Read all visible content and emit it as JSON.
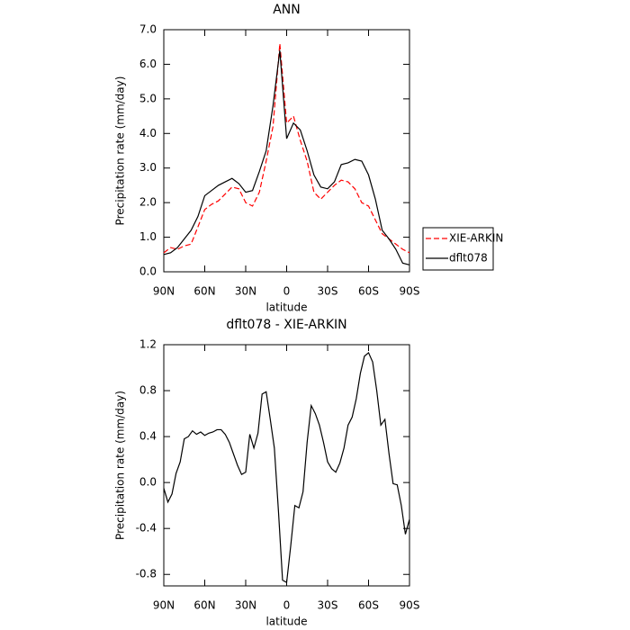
{
  "chart_data": [
    {
      "type": "line",
      "title": "ANN",
      "xlabel": "latitude",
      "ylabel": "Precipitation rate (mm/day)",
      "x": [
        90,
        85,
        80,
        75,
        70,
        65,
        60,
        55,
        50,
        45,
        40,
        35,
        30,
        25,
        20,
        15,
        10,
        5,
        0,
        -5,
        -10,
        -15,
        -20,
        -25,
        -30,
        -35,
        -40,
        -45,
        -50,
        -55,
        -60,
        -65,
        -70,
        -75,
        -80,
        -85,
        -90
      ],
      "series": [
        {
          "name": "XIE-ARKIN",
          "color": "#ff0000",
          "line_style": "dashed",
          "values": [
            0.55,
            0.7,
            0.65,
            0.75,
            0.8,
            1.3,
            1.8,
            1.95,
            2.05,
            2.25,
            2.45,
            2.4,
            2.0,
            1.9,
            2.3,
            3.2,
            4.2,
            6.6,
            4.3,
            4.5,
            3.8,
            3.2,
            2.3,
            2.1,
            2.3,
            2.5,
            2.65,
            2.6,
            2.4,
            2.0,
            1.9,
            1.5,
            1.1,
            0.95,
            0.8,
            0.65,
            0.55
          ]
        },
        {
          "name": "dflt078",
          "color": "#000000",
          "line_style": "solid",
          "values": [
            0.5,
            0.55,
            0.7,
            0.95,
            1.2,
            1.6,
            2.2,
            2.35,
            2.5,
            2.6,
            2.7,
            2.55,
            2.3,
            2.35,
            2.9,
            3.5,
            4.8,
            6.4,
            3.85,
            4.3,
            4.1,
            3.5,
            2.8,
            2.45,
            2.4,
            2.6,
            3.1,
            3.15,
            3.25,
            3.2,
            2.8,
            2.1,
            1.2,
            0.95,
            0.65,
            0.25,
            0.2
          ]
        }
      ],
      "xlim": [
        90,
        -90
      ],
      "xticks": [
        {
          "value": 90,
          "label": "90N"
        },
        {
          "value": 60,
          "label": "60N"
        },
        {
          "value": 30,
          "label": "30N"
        },
        0,
        {
          "value": -30,
          "label": "30S"
        },
        {
          "value": -60,
          "label": "60S"
        },
        {
          "value": -90,
          "label": "90S"
        }
      ],
      "ylim": [
        0,
        7
      ],
      "yticks": [
        {
          "value": 0,
          "label": "0.0"
        },
        {
          "value": 1,
          "label": "1.0"
        },
        {
          "value": 2,
          "label": "2.0"
        },
        {
          "value": 3,
          "label": "3.0"
        },
        {
          "value": 4,
          "label": "4.0"
        },
        {
          "value": 5,
          "label": "5.0"
        },
        {
          "value": 6,
          "label": "6.0"
        },
        {
          "value": 7,
          "label": "7.0"
        }
      ],
      "legend": "right"
    },
    {
      "type": "line",
      "title": "dflt078 - XIE-ARKIN",
      "xlabel": "latitude",
      "ylabel": "Precipitation rate (mm/day)",
      "x": [
        90,
        87,
        84,
        81,
        78,
        75,
        72,
        69,
        66,
        63,
        60,
        57,
        54,
        51,
        48,
        45,
        42,
        39,
        36,
        33,
        30,
        27,
        24,
        21,
        18,
        15,
        12,
        9,
        6,
        3,
        0,
        -3,
        -6,
        -9,
        -12,
        -15,
        -18,
        -21,
        -24,
        -27,
        -30,
        -33,
        -36,
        -39,
        -42,
        -45,
        -48,
        -51,
        -54,
        -57,
        -60,
        -63,
        -66,
        -69,
        -72,
        -75,
        -78,
        -81,
        -84,
        -87,
        -90
      ],
      "values": [
        -0.05,
        -0.17,
        -0.1,
        0.08,
        0.18,
        0.38,
        0.4,
        0.45,
        0.42,
        0.44,
        0.41,
        0.43,
        0.44,
        0.46,
        0.46,
        0.42,
        0.35,
        0.25,
        0.15,
        0.07,
        0.09,
        0.42,
        0.3,
        0.43,
        0.77,
        0.79,
        0.55,
        0.3,
        -0.25,
        -0.85,
        -0.87,
        -0.55,
        -0.2,
        -0.22,
        -0.08,
        0.35,
        0.67,
        0.6,
        0.5,
        0.35,
        0.18,
        0.12,
        0.09,
        0.17,
        0.3,
        0.5,
        0.57,
        0.73,
        0.95,
        1.1,
        1.13,
        1.05,
        0.8,
        0.5,
        0.55,
        0.25,
        -0.01,
        -0.02,
        -0.2,
        -0.45,
        -0.32
      ],
      "color": "#000000",
      "xlim": [
        90,
        -90
      ],
      "xticks": [
        {
          "value": 90,
          "label": "90N"
        },
        {
          "value": 60,
          "label": "60N"
        },
        {
          "value": 30,
          "label": "30N"
        },
        0,
        {
          "value": -30,
          "label": "30S"
        },
        {
          "value": -60,
          "label": "60S"
        },
        {
          "value": -90,
          "label": "90S"
        }
      ],
      "ylim": [
        -0.9,
        1.2
      ],
      "yticks": [
        -0.8,
        -0.4,
        {
          "value": 0,
          "label": "0.0"
        },
        0.4,
        0.8,
        1.2
      ]
    }
  ]
}
